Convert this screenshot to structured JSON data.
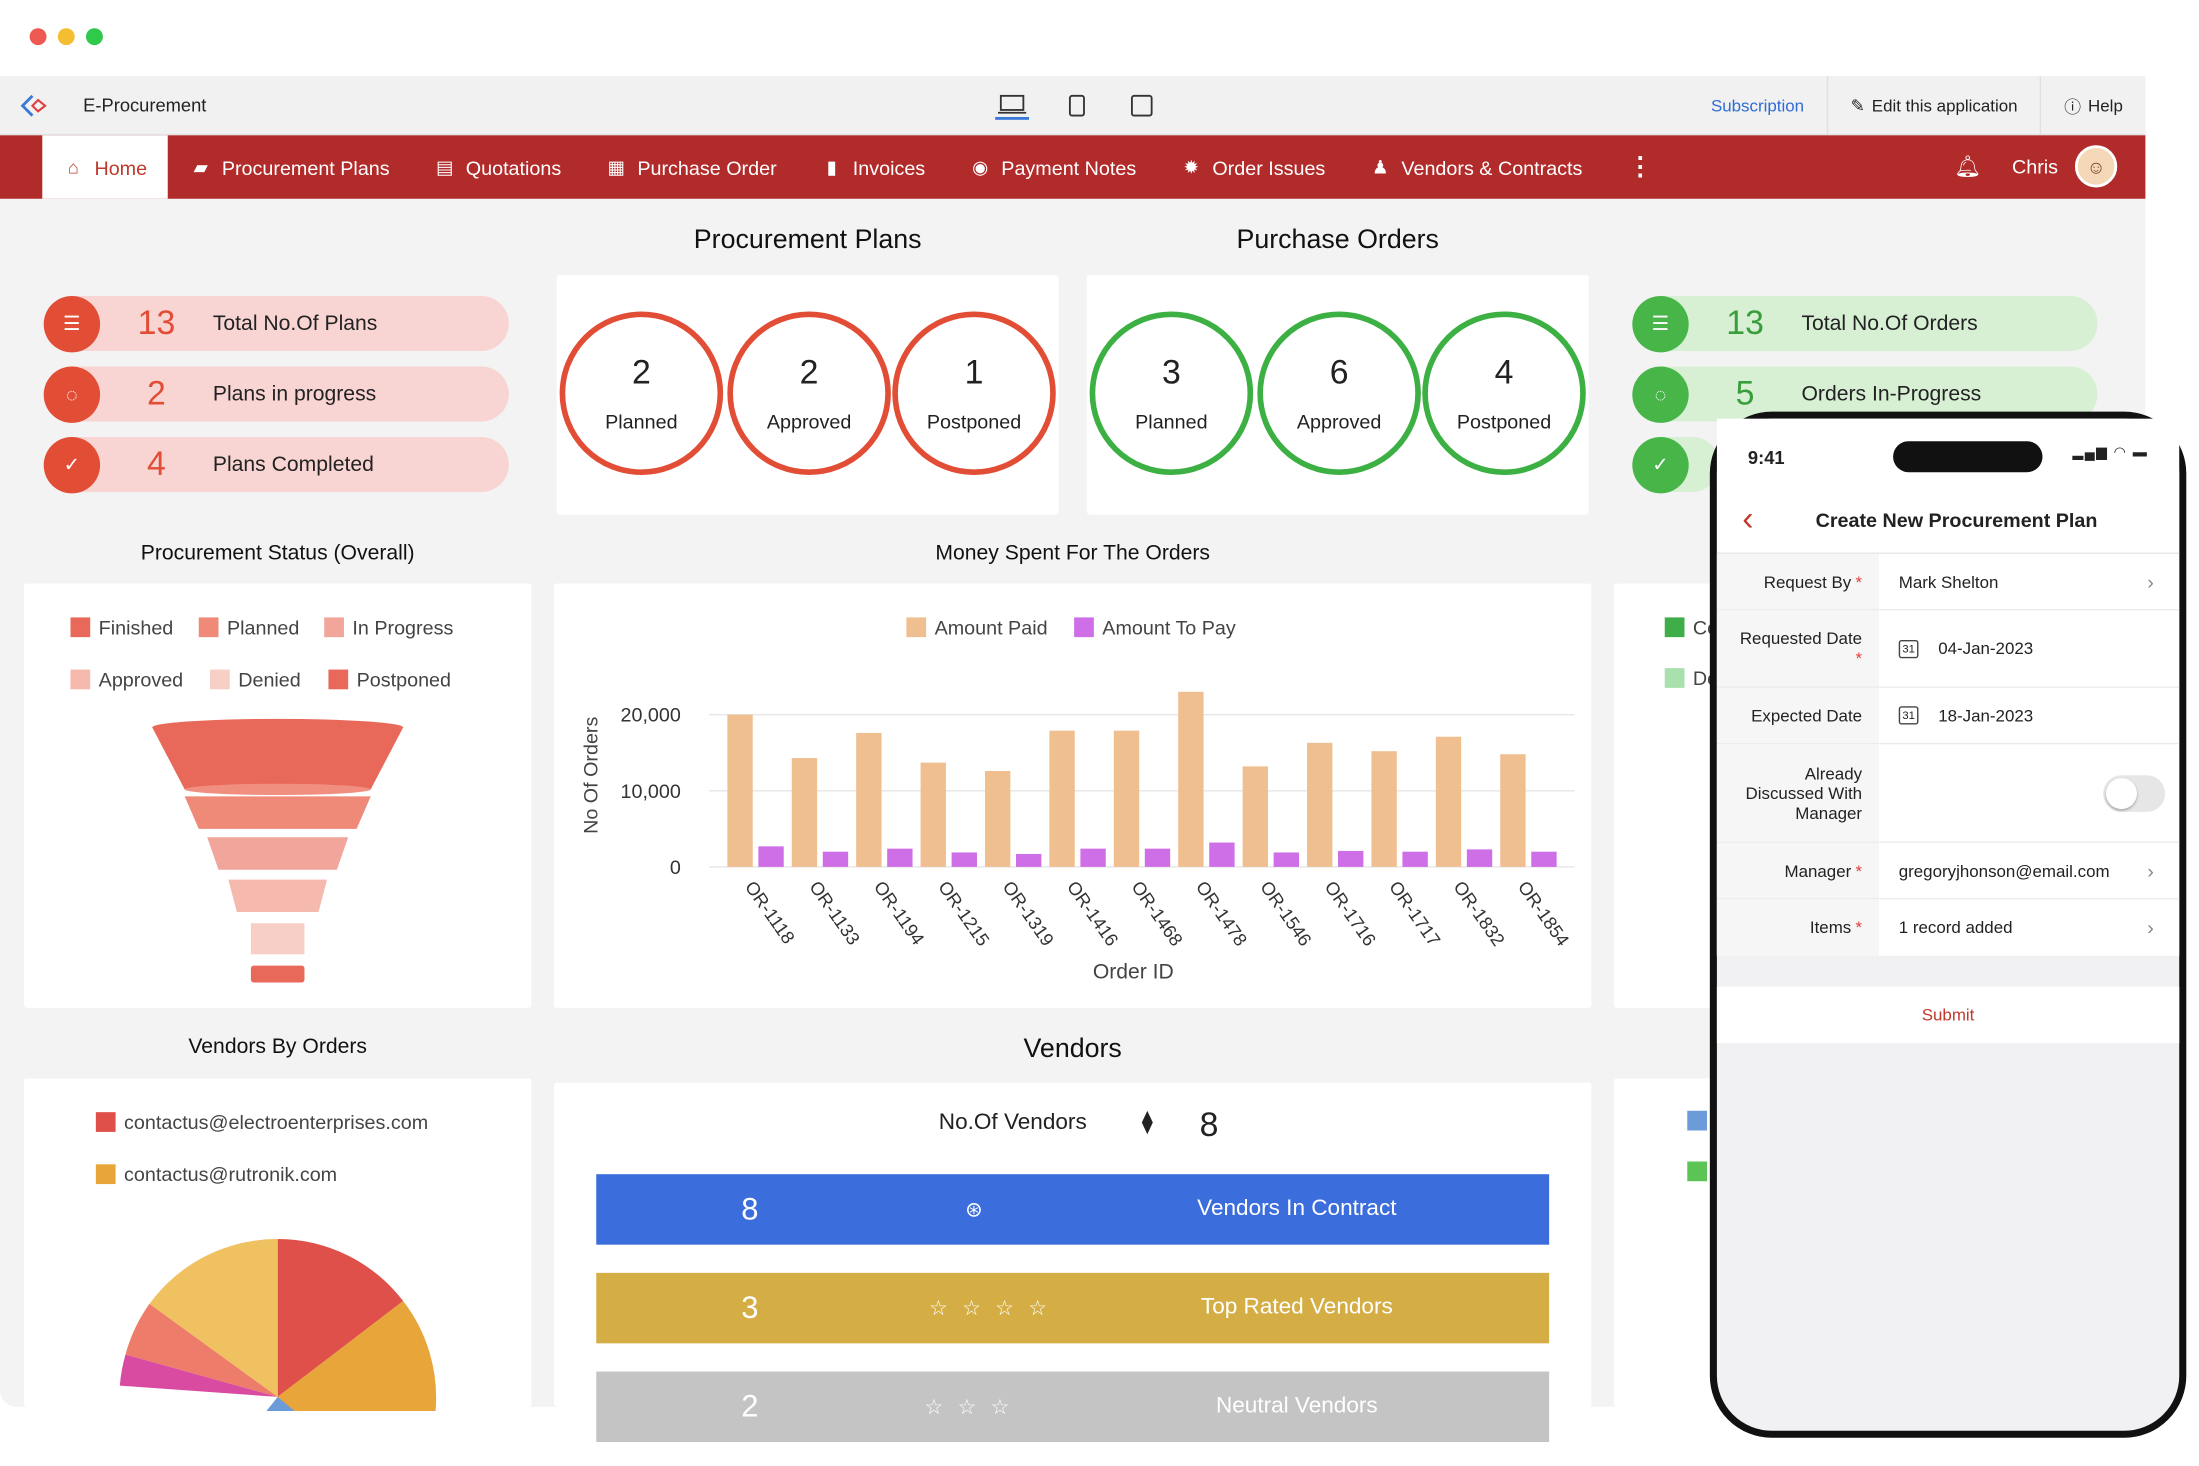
{
  "window": {
    "dots": [
      "#ee5a52",
      "#f4be30",
      "#2fc94c"
    ]
  },
  "topbar": {
    "app_title": "E-Procurement",
    "subscription": "Subscription",
    "edit": "Edit this application",
    "help": "Help"
  },
  "nav": {
    "tabs": [
      {
        "label": "Home",
        "icon": "home-icon"
      },
      {
        "label": "Procurement Plans",
        "icon": "plans-icon"
      },
      {
        "label": "Quotations",
        "icon": "quotations-icon"
      },
      {
        "label": "Purchase Order",
        "icon": "purchase-order-icon"
      },
      {
        "label": "Invoices",
        "icon": "invoices-icon"
      },
      {
        "label": "Payment Notes",
        "icon": "payment-notes-icon"
      },
      {
        "label": "Order Issues",
        "icon": "order-issues-icon"
      },
      {
        "label": "Vendors & Contracts",
        "icon": "vendors-icon"
      }
    ],
    "user": "Chris",
    "color": "#b22b2b"
  },
  "procurement": {
    "title": "Procurement Plans",
    "stats": [
      {
        "value": "13",
        "label": "Total No.Of Plans"
      },
      {
        "value": "2",
        "label": "Plans in progress"
      },
      {
        "value": "4",
        "label": "Plans Completed"
      }
    ],
    "rings": [
      {
        "value": "2",
        "label": "Planned"
      },
      {
        "value": "2",
        "label": "Approved"
      },
      {
        "value": "1",
        "label": "Postponed"
      }
    ]
  },
  "purchase": {
    "title": "Purchase Orders",
    "rings": [
      {
        "value": "3",
        "label": "Planned"
      },
      {
        "value": "6",
        "label": "Approved"
      },
      {
        "value": "4",
        "label": "Postponed"
      }
    ],
    "stats": [
      {
        "value": "13",
        "label": "Total No.Of Orders"
      },
      {
        "value": "5",
        "label": "Orders In-Progress"
      }
    ]
  },
  "status": {
    "title": "Procurement Status (Overall)",
    "legend": [
      {
        "label": "Finished",
        "color": "#e8695a"
      },
      {
        "label": "Planned",
        "color": "#ef8a78"
      },
      {
        "label": "In Progress",
        "color": "#f2a59a"
      },
      {
        "label": "Approved",
        "color": "#f5b9ae"
      },
      {
        "label": "Denied",
        "color": "#f8cfc6"
      },
      {
        "label": "Postponed",
        "color": "#e8695a"
      }
    ]
  },
  "right_legend": [
    {
      "label": "Co",
      "color": "#3fae49"
    },
    {
      "label": "De",
      "color": "#a8e0ae"
    }
  ],
  "right_legend2": [
    {
      "color": "#6b9bd8"
    },
    {
      "color": "#5cc454"
    }
  ],
  "chart_data": {
    "type": "bar",
    "title": "Money Spent For The Orders",
    "xlabel": "Order ID",
    "ylabel": "No Of Orders",
    "categories": [
      "OR-1118",
      "OR-1133",
      "OR-1194",
      "OR-1215",
      "OR-1319",
      "OR-1416",
      "OR-1468",
      "OR-1478",
      "OR-1546",
      "OR-1716",
      "OR-1717",
      "OR-1832",
      "OR-1854"
    ],
    "series": [
      {
        "name": "Amount Paid",
        "color": "#f0bf90",
        "values": [
          20000,
          14300,
          17600,
          13700,
          12600,
          17900,
          17900,
          23000,
          13200,
          16300,
          15200,
          17100,
          14800
        ]
      },
      {
        "name": "Amount To Pay",
        "color": "#cf6fe8",
        "values": [
          2700,
          2000,
          2400,
          1900,
          1700,
          2400,
          2400,
          3200,
          1900,
          2100,
          2000,
          2300,
          2000
        ]
      }
    ],
    "ylim": [
      0,
      25000
    ],
    "yticks": [
      "0",
      "10,000",
      "20,000"
    ],
    "yticks_values": [
      0,
      10000,
      20000
    ]
  },
  "vendors_by_orders": {
    "title": "Vendors By Orders",
    "legend": [
      {
        "label": "contactus@electroenterprises.com",
        "color": "#e0504a"
      },
      {
        "label": "contactus@rutronik.com",
        "color": "#e8a53a"
      }
    ]
  },
  "vendors": {
    "title": "Vendors",
    "count_label": "No.Of Vendors",
    "count": "8",
    "bars": [
      {
        "value": "8",
        "label": "Vendors In Contract",
        "color": "#3b6ddc",
        "icon": "handshake-icon"
      },
      {
        "value": "3",
        "label": "Top Rated Vendors",
        "color": "#d4ae45",
        "icon": "star-icon"
      },
      {
        "value": "2",
        "label": "Neutral Vendors",
        "color": "#c4c4c4",
        "icon": "star-icon"
      }
    ]
  },
  "phone": {
    "time": "9:41",
    "title": "Create New Procurement Plan",
    "fields": [
      {
        "label": "Request By",
        "value": "Mark Shelton"
      },
      {
        "label": "Requested Date",
        "value": "04-Jan-2023"
      },
      {
        "label": "Expected Date",
        "value": "18-Jan-2023"
      },
      {
        "label": "Already Discussed With Manager",
        "value": ""
      },
      {
        "label": "Manager",
        "value": "gregoryjhonson@email.com"
      },
      {
        "label": "Items",
        "value": "1 record added"
      }
    ],
    "submit": "Submit"
  }
}
